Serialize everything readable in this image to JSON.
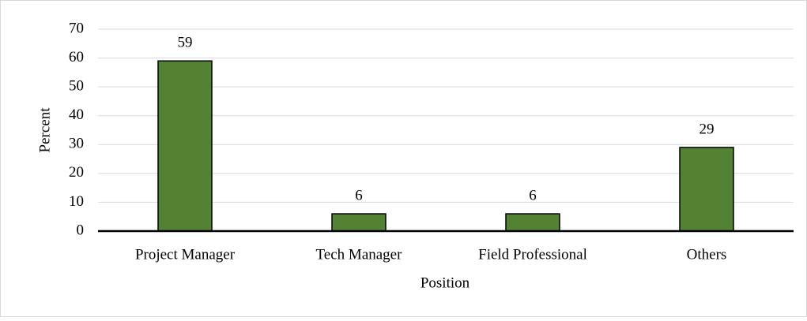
{
  "chart_data": {
    "type": "bar",
    "categories": [
      "Project Manager",
      "Tech Manager",
      "Field Professional",
      "Others"
    ],
    "values": [
      59,
      6,
      6,
      29
    ],
    "color": "#548235",
    "xlabel": "Position",
    "ylabel": "Percent",
    "ylim": [
      0,
      70
    ],
    "yticks": [
      0,
      10,
      20,
      30,
      40,
      50,
      60,
      70
    ],
    "grid": true
  }
}
